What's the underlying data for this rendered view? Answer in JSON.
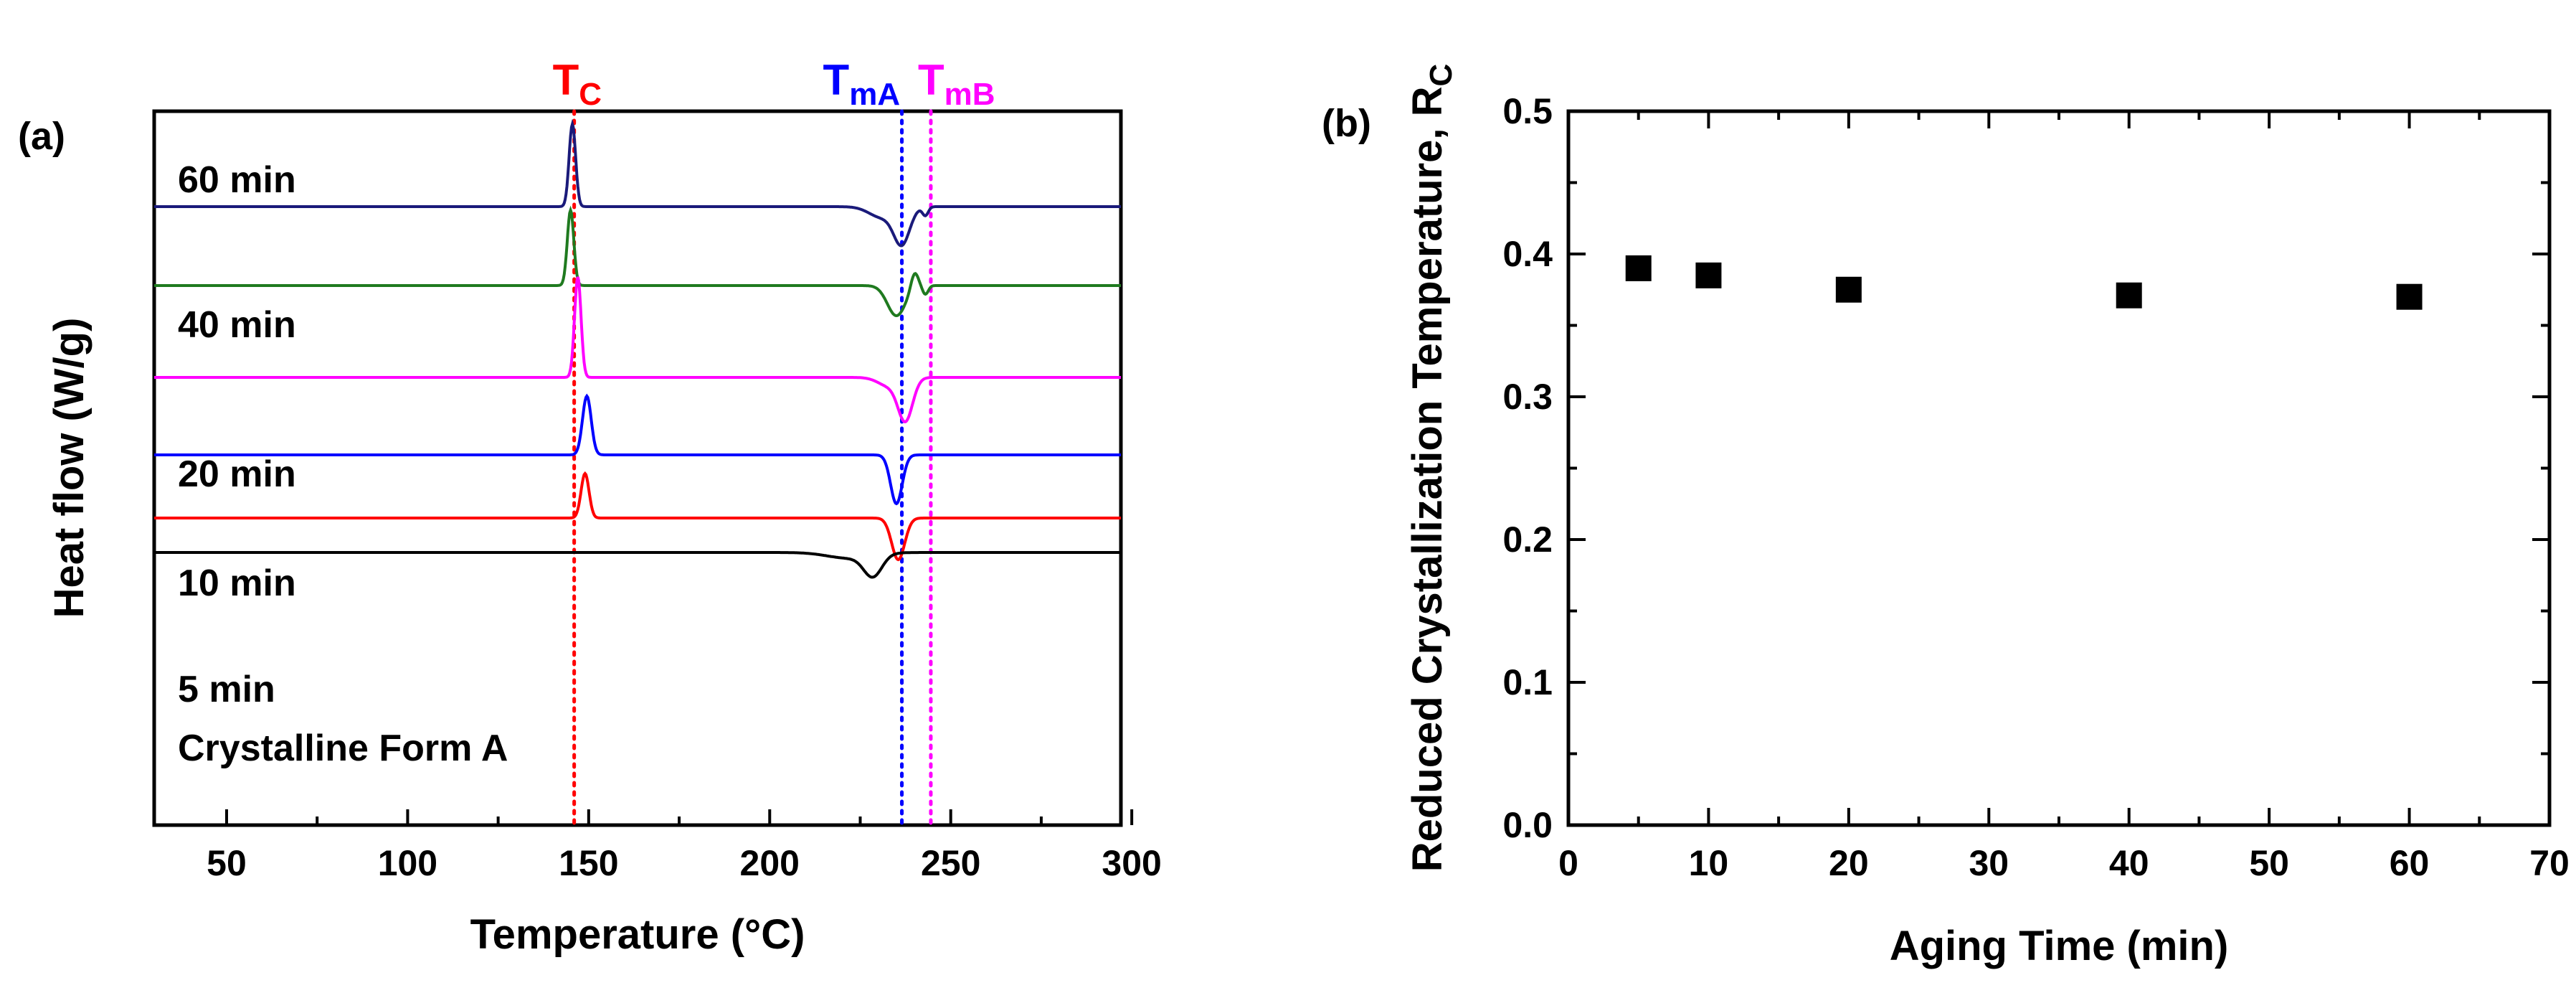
{
  "chart_data": [
    {
      "type": "line",
      "panel_label": "(a)",
      "xlabel": "Temperature (°C)",
      "ylabel": "Heat flow (W/g)",
      "xlim": [
        30,
        297
      ],
      "xticks": [
        50,
        100,
        150,
        200,
        250,
        300
      ],
      "reference_lines": [
        {
          "name": "Tc",
          "label": "T",
          "sub": "C",
          "x": 146,
          "color": "#ff0000"
        },
        {
          "name": "TmA",
          "label": "T",
          "sub": "mA",
          "x": 236.5,
          "color": "#0000ff"
        },
        {
          "name": "TmB",
          "label": "T",
          "sub": "mB",
          "x": 244.5,
          "color": "#ff00ff"
        }
      ],
      "series": [
        {
          "name": "60 min",
          "color": "#1a1a7a",
          "baseline": 0.88,
          "peaks": [
            {
              "x": 145.5,
              "h": 1.15,
              "w": 0.9
            }
          ],
          "dips": [
            {
              "x": 236.5,
              "h": 0.5,
              "w": 2.2
            },
            {
              "x": 231,
              "h": 0.15,
              "w": 3.5
            },
            {
              "x": 243,
              "h": 0.12,
              "w": 0.8
            }
          ]
        },
        {
          "name": "40 min",
          "color": "#1f7a1f",
          "baseline": 1.98,
          "peaks": [
            {
              "x": 145,
              "h": 1.05,
              "w": 0.9
            },
            {
              "x": 240,
              "h": 0.22,
              "w": 1.0
            }
          ],
          "dips": [
            {
              "x": 235,
              "h": 0.42,
              "w": 2.5
            },
            {
              "x": 243,
              "h": 0.12,
              "w": 0.8
            }
          ]
        },
        {
          "name": "20 min",
          "color": "#ff00ff",
          "baseline": 3.26,
          "peaks": [
            {
              "x": 147,
              "h": 1.4,
              "w": 0.9
            }
          ],
          "dips": [
            {
              "x": 237.5,
              "h": 0.58,
              "w": 2.0
            },
            {
              "x": 233,
              "h": 0.12,
              "w": 3.0
            }
          ]
        },
        {
          "name": "10 min",
          "color": "#0000ff",
          "baseline": 4.34,
          "peaks": [
            {
              "x": 149.5,
              "h": 0.82,
              "w": 1.2
            }
          ],
          "dips": [
            {
              "x": 235,
              "h": 0.68,
              "w": 1.6
            }
          ]
        },
        {
          "name": "5 min",
          "color": "#ff0000",
          "baseline": 5.22,
          "peaks": [
            {
              "x": 149,
              "h": 0.62,
              "w": 1.1
            }
          ],
          "dips": [
            {
              "x": 235.5,
              "h": 0.58,
              "w": 1.8
            }
          ]
        },
        {
          "name": "Crystalline Form A",
          "color": "#000000",
          "baseline": 5.7,
          "peaks": [],
          "dips": [
            {
              "x": 228.5,
              "h": 0.3,
              "w": 2.5
            },
            {
              "x": 222,
              "h": 0.08,
              "w": 6.0
            }
          ]
        }
      ]
    },
    {
      "type": "scatter",
      "panel_label": "(b)",
      "xlabel": "Aging Time (min)",
      "ylabel": "Reduced Crystallization Temperature, R",
      "ylabel_sub": "C",
      "xlim": [
        0,
        70
      ],
      "ylim": [
        0.0,
        0.5
      ],
      "xticks": [
        0,
        10,
        20,
        30,
        40,
        50,
        60,
        70
      ],
      "yticks": [
        0.0,
        0.1,
        0.2,
        0.3,
        0.4,
        0.5
      ],
      "x": [
        5,
        10,
        20,
        40,
        60
      ],
      "y": [
        0.39,
        0.385,
        0.375,
        0.371,
        0.37
      ],
      "marker": "square",
      "marker_color": "#000000"
    }
  ]
}
